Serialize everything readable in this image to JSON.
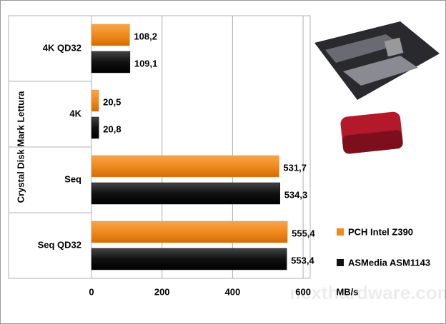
{
  "chart_data": {
    "type": "hbar",
    "y_axis_label": "Crystal Disk Mark Lettura",
    "x_axis_label": "MB/s",
    "categories": [
      "4K QD32",
      "4K",
      "Seq",
      "Seq QD32"
    ],
    "series": [
      {
        "name": "PCH Intel Z390",
        "color": "#f08a1c",
        "values": [
          108.2,
          20.5,
          531.7,
          555.4
        ],
        "value_labels": [
          "108,2",
          "20,5",
          "531,7",
          "555,4"
        ]
      },
      {
        "name": "ASMedia ASM1143",
        "color": "#111111",
        "values": [
          109.1,
          20.8,
          534.3,
          553.4
        ],
        "value_labels": [
          "109,1",
          "20,8",
          "534,3",
          "553,4"
        ]
      }
    ],
    "xlim": [
      0,
      620
    ],
    "xticks": [
      0,
      200,
      400,
      600
    ],
    "grid": true,
    "watermark": "nexthardware.com"
  }
}
